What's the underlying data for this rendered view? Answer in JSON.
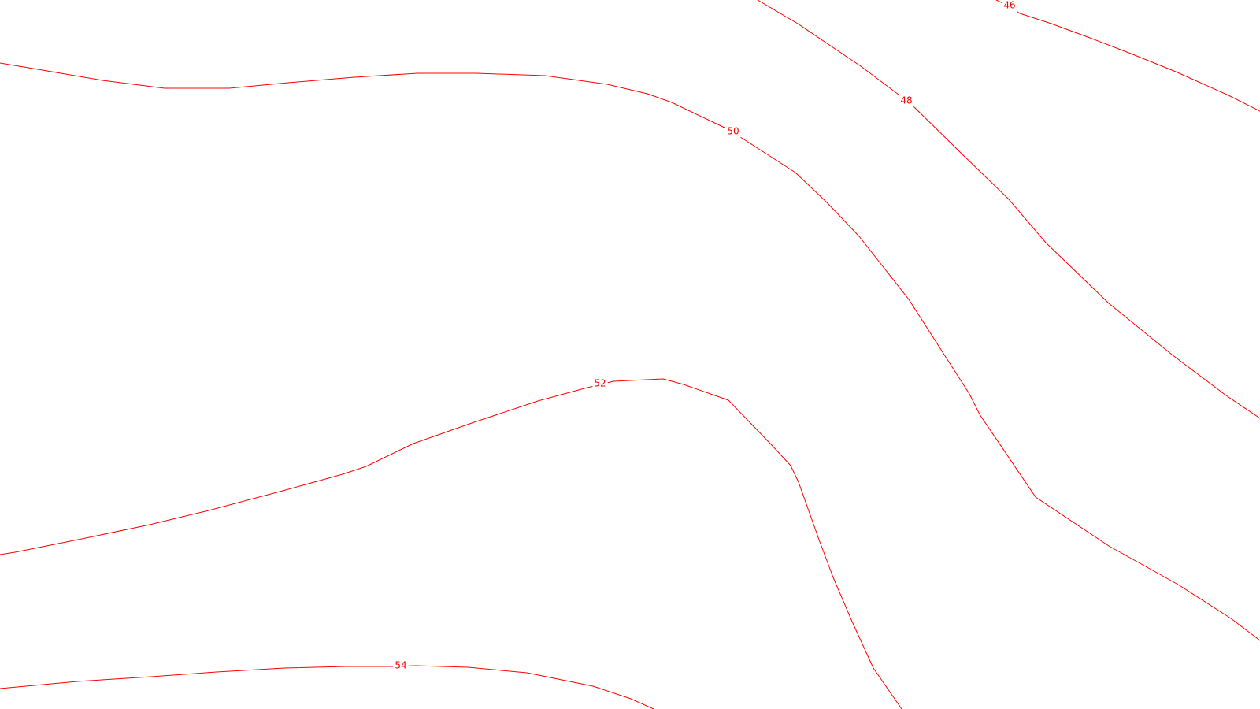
{
  "map": {
    "line_color": "#ff0000",
    "background": "#ffffff",
    "contours": [
      {
        "value": 46,
        "label": "46"
      },
      {
        "value": 48,
        "label": "48"
      },
      {
        "value": 50,
        "label": "50"
      },
      {
        "value": 52,
        "label": "52"
      },
      {
        "value": 54,
        "label": "54"
      }
    ]
  }
}
